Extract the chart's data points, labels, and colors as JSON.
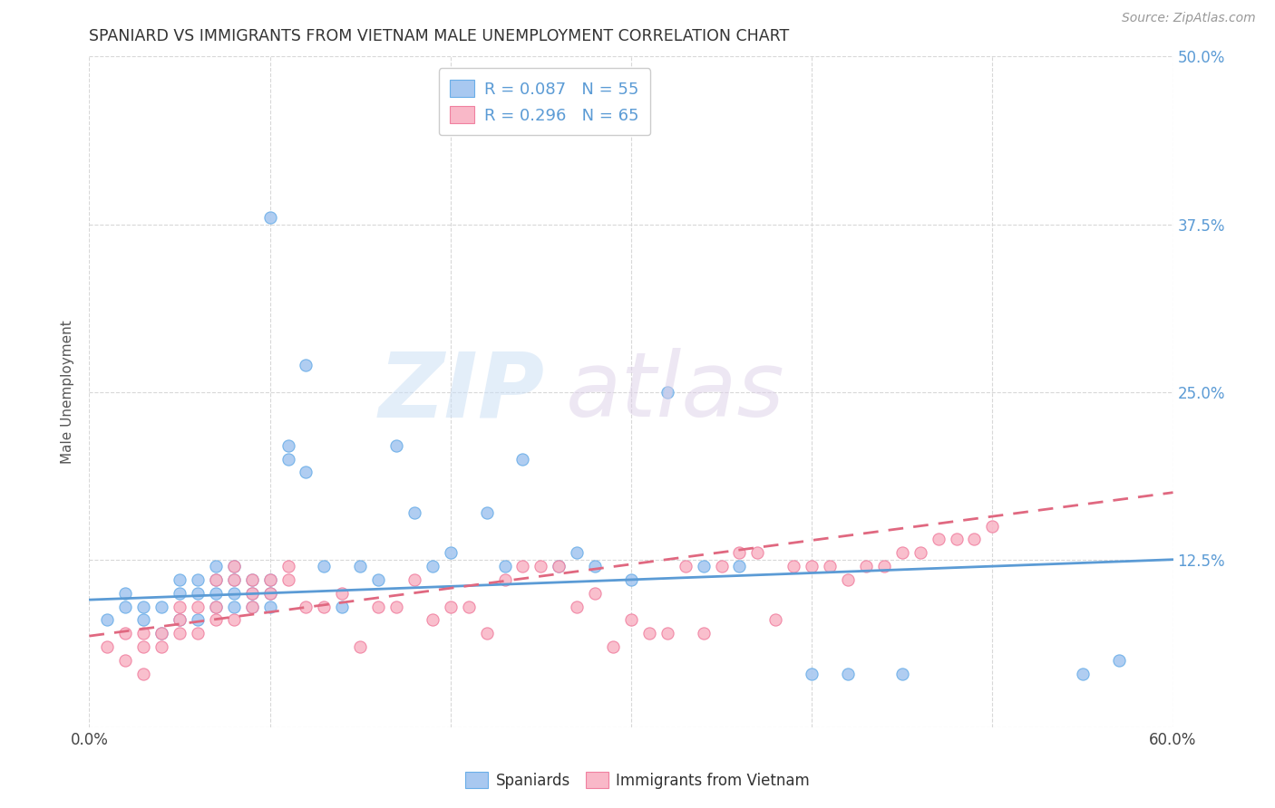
{
  "title": "SPANIARD VS IMMIGRANTS FROM VIETNAM MALE UNEMPLOYMENT CORRELATION CHART",
  "source": "Source: ZipAtlas.com",
  "ylabel": "Male Unemployment",
  "xlim": [
    0.0,
    0.6
  ],
  "ylim": [
    0.0,
    0.5
  ],
  "xticks": [
    0.0,
    0.1,
    0.2,
    0.3,
    0.4,
    0.5,
    0.6
  ],
  "yticks": [
    0.0,
    0.125,
    0.25,
    0.375,
    0.5
  ],
  "right_ytick_labels": [
    "",
    "12.5%",
    "25.0%",
    "37.5%",
    "50.0%"
  ],
  "xtick_labels": [
    "0.0%",
    "",
    "",
    "",
    "",
    "",
    "60.0%"
  ],
  "background_color": "#ffffff",
  "grid_color": "#d8d8d8",
  "spaniards_color": "#a8c8f0",
  "vietnam_color": "#f9b8c8",
  "spaniards_edge_color": "#6aaee8",
  "vietnam_edge_color": "#f080a0",
  "spaniards_line_color": "#5b9bd5",
  "vietnam_line_color": "#e06880",
  "legend_text_color": "#5b9bd5",
  "spaniards_x": [
    0.01,
    0.02,
    0.02,
    0.03,
    0.03,
    0.04,
    0.04,
    0.05,
    0.05,
    0.05,
    0.06,
    0.06,
    0.06,
    0.07,
    0.07,
    0.07,
    0.07,
    0.08,
    0.08,
    0.08,
    0.08,
    0.09,
    0.09,
    0.09,
    0.1,
    0.1,
    0.1,
    0.1,
    0.11,
    0.11,
    0.12,
    0.12,
    0.13,
    0.14,
    0.15,
    0.16,
    0.17,
    0.18,
    0.19,
    0.2,
    0.22,
    0.23,
    0.24,
    0.26,
    0.27,
    0.28,
    0.3,
    0.32,
    0.34,
    0.36,
    0.4,
    0.42,
    0.45,
    0.55,
    0.57
  ],
  "spaniards_y": [
    0.08,
    0.09,
    0.1,
    0.08,
    0.09,
    0.07,
    0.09,
    0.08,
    0.1,
    0.11,
    0.08,
    0.1,
    0.11,
    0.09,
    0.1,
    0.11,
    0.12,
    0.09,
    0.1,
    0.11,
    0.12,
    0.09,
    0.1,
    0.11,
    0.09,
    0.1,
    0.11,
    0.38,
    0.2,
    0.21,
    0.27,
    0.19,
    0.12,
    0.09,
    0.12,
    0.11,
    0.21,
    0.16,
    0.12,
    0.13,
    0.16,
    0.12,
    0.2,
    0.12,
    0.13,
    0.12,
    0.11,
    0.25,
    0.12,
    0.12,
    0.04,
    0.04,
    0.04,
    0.04,
    0.05
  ],
  "vietnam_x": [
    0.01,
    0.02,
    0.02,
    0.03,
    0.03,
    0.03,
    0.04,
    0.04,
    0.05,
    0.05,
    0.05,
    0.06,
    0.06,
    0.07,
    0.07,
    0.07,
    0.08,
    0.08,
    0.08,
    0.09,
    0.09,
    0.09,
    0.1,
    0.1,
    0.11,
    0.11,
    0.12,
    0.13,
    0.14,
    0.15,
    0.16,
    0.17,
    0.18,
    0.19,
    0.2,
    0.21,
    0.22,
    0.23,
    0.24,
    0.25,
    0.26,
    0.27,
    0.28,
    0.29,
    0.3,
    0.31,
    0.32,
    0.33,
    0.34,
    0.35,
    0.36,
    0.37,
    0.38,
    0.39,
    0.4,
    0.41,
    0.42,
    0.43,
    0.44,
    0.45,
    0.46,
    0.47,
    0.48,
    0.49,
    0.5
  ],
  "vietnam_y": [
    0.06,
    0.05,
    0.07,
    0.04,
    0.06,
    0.07,
    0.06,
    0.07,
    0.07,
    0.08,
    0.09,
    0.07,
    0.09,
    0.08,
    0.09,
    0.11,
    0.08,
    0.11,
    0.12,
    0.09,
    0.1,
    0.11,
    0.1,
    0.11,
    0.11,
    0.12,
    0.09,
    0.09,
    0.1,
    0.06,
    0.09,
    0.09,
    0.11,
    0.08,
    0.09,
    0.09,
    0.07,
    0.11,
    0.12,
    0.12,
    0.12,
    0.09,
    0.1,
    0.06,
    0.08,
    0.07,
    0.07,
    0.12,
    0.07,
    0.12,
    0.13,
    0.13,
    0.08,
    0.12,
    0.12,
    0.12,
    0.11,
    0.12,
    0.12,
    0.13,
    0.13,
    0.14,
    0.14,
    0.14,
    0.15
  ],
  "sp_line_x0": 0.0,
  "sp_line_x1": 0.6,
  "sp_line_y0": 0.095,
  "sp_line_y1": 0.125,
  "vn_line_x0": 0.0,
  "vn_line_x1": 0.6,
  "vn_line_y0": 0.068,
  "vn_line_y1": 0.175
}
